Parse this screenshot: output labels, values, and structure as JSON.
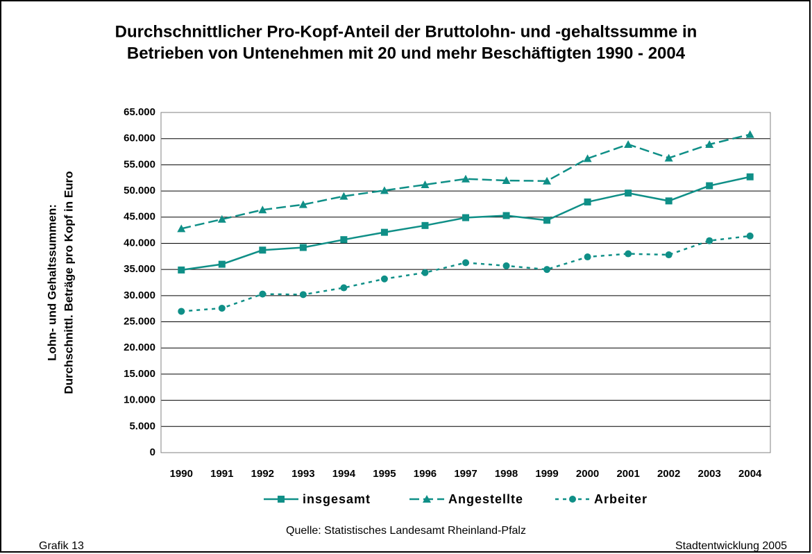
{
  "chart_data": {
    "type": "line",
    "title": [
      "Durchschnittlicher Pro-Kopf-Anteil der Bruttolohn-  und -gehaltssumme in",
      "Betrieben von Untenehmen mit 20  und mehr Beschäftigten 1990 - 2004"
    ],
    "y_label": [
      "Lohn- und Gehaltssummen:",
      "Durchschnittl. Beträge pro Kopf in Euro"
    ],
    "categories": [
      "1990",
      "1991",
      "1992",
      "1993",
      "1994",
      "1995",
      "1996",
      "1997",
      "1998",
      "1999",
      "2000",
      "2001",
      "2002",
      "2003",
      "2004"
    ],
    "series": [
      {
        "name": "insgesamt",
        "color": "#0f8f87",
        "marker": "square",
        "dash": "solid",
        "values": [
          34900,
          36000,
          38700,
          39200,
          40700,
          42100,
          43400,
          44900,
          45300,
          44400,
          47900,
          49600,
          48100,
          51000,
          52700
        ]
      },
      {
        "name": "Angestellte",
        "color": "#0f8f87",
        "marker": "triangle",
        "dash": "dashed",
        "values": [
          42800,
          44600,
          46400,
          47400,
          49000,
          50100,
          51200,
          52300,
          52000,
          51900,
          56200,
          58900,
          56300,
          58900,
          60800
        ]
      },
      {
        "name": "Arbeiter",
        "color": "#0f8f87",
        "marker": "circle",
        "dash": "dotted",
        "values": [
          27000,
          27600,
          30300,
          30200,
          31500,
          33200,
          34400,
          36300,
          35700,
          35000,
          37400,
          38000,
          37800,
          40500,
          41400
        ]
      }
    ],
    "ylim": [
      0,
      65000
    ],
    "yticks": [
      0,
      {
        "value": 5000,
        "label": "5.000"
      },
      {
        "value": 10000,
        "label": "10.000"
      },
      {
        "value": 15000,
        "label": "15.000"
      },
      {
        "value": 20000,
        "label": "20.000"
      },
      {
        "value": 25000,
        "label": "25.000"
      },
      {
        "value": 30000,
        "label": "30.000"
      },
      {
        "value": 35000,
        "label": "35.000"
      },
      {
        "value": 40000,
        "label": "40.000"
      },
      {
        "value": 45000,
        "label": "45.000"
      },
      {
        "value": 50000,
        "label": "50.000"
      },
      {
        "value": 55000,
        "label": "55.000"
      },
      {
        "value": 60000,
        "label": "60.000"
      },
      {
        "value": 65000,
        "label": "65.000"
      }
    ],
    "grid": true,
    "legend": "bottom",
    "source": "Quelle: Statistisches Landesamt Rheinland-Pfalz",
    "footer_left": "Grafik 13",
    "footer_right": "Stadtentwicklung 2005"
  }
}
